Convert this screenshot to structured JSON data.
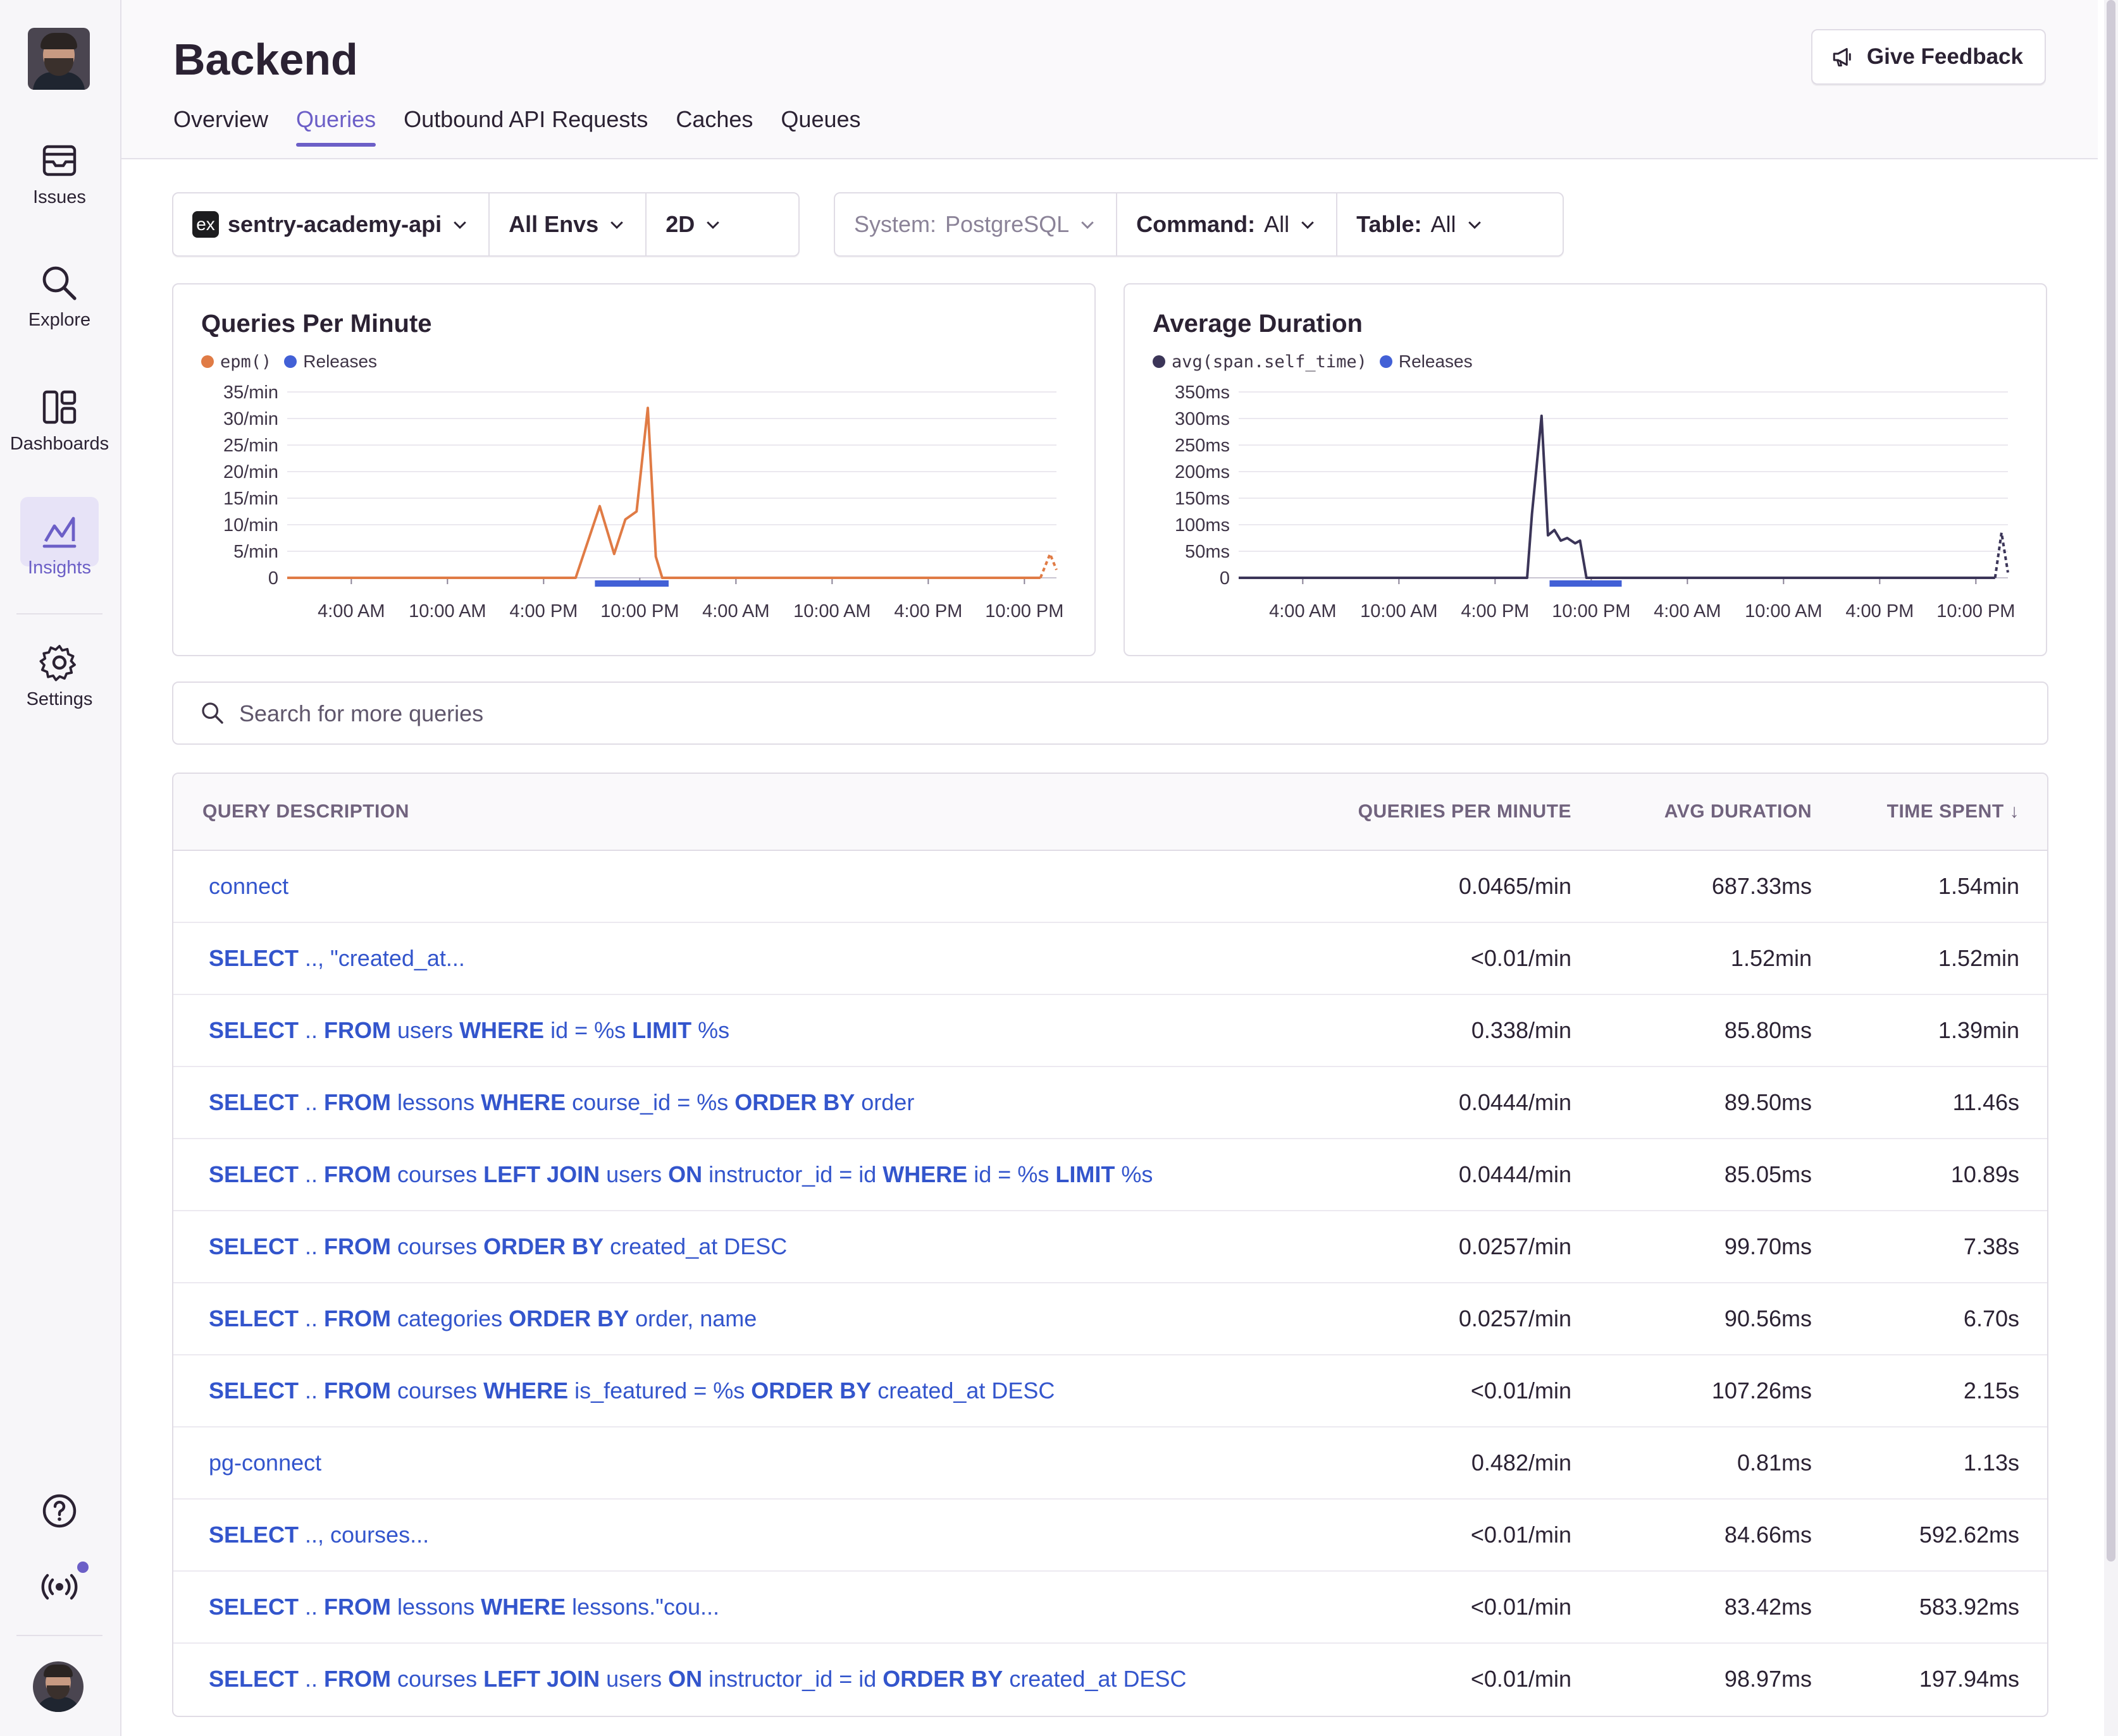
{
  "sidebar": {
    "items": [
      {
        "label": "Issues",
        "icon": "issues-icon"
      },
      {
        "label": "Explore",
        "icon": "search-icon"
      },
      {
        "label": "Dashboards",
        "icon": "dashboard-icon"
      },
      {
        "label": "Insights",
        "icon": "insights-icon",
        "active": true
      },
      {
        "label": "Settings",
        "icon": "gear-icon"
      }
    ],
    "footer_icons": [
      "help-icon",
      "broadcast-icon"
    ]
  },
  "header": {
    "title": "Backend",
    "feedback_label": "Give Feedback",
    "tabs": [
      {
        "label": "Overview"
      },
      {
        "label": "Queries",
        "active": true
      },
      {
        "label": "Outbound API Requests"
      },
      {
        "label": "Caches"
      },
      {
        "label": "Queues"
      }
    ]
  },
  "filters": {
    "project": {
      "badge": "ex",
      "label": "sentry-academy-api"
    },
    "env": "All Envs",
    "period": "2D",
    "system": {
      "key": "System:",
      "value": "PostgreSQL"
    },
    "command": {
      "key": "Command:",
      "value": "All"
    },
    "table": {
      "key": "Table:",
      "value": "All"
    }
  },
  "colors": {
    "accent": "#6c5fc7",
    "epm_series": "#e07b45",
    "duration_series": "#3b3558",
    "releases": "#4260d6",
    "link": "#3355cc"
  },
  "charts": {
    "qpm": {
      "title": "Queries Per Minute",
      "legend": [
        {
          "label": "epm()",
          "color": "#e07b45",
          "mono": true
        },
        {
          "label": "Releases",
          "color": "#4260d6"
        }
      ]
    },
    "duration": {
      "title": "Average Duration",
      "legend": [
        {
          "label": "avg(span.self_time)",
          "color": "#3b3558",
          "mono": true
        },
        {
          "label": "Releases",
          "color": "#4260d6"
        }
      ]
    }
  },
  "chart_data": [
    {
      "type": "line",
      "title": "Queries Per Minute",
      "ylabel": "",
      "ylim": [
        0,
        35
      ],
      "yticks": [
        "35/min",
        "30/min",
        "25/min",
        "20/min",
        "15/min",
        "10/min",
        "5/min",
        "0"
      ],
      "xticks": [
        "4:00 AM",
        "10:00 AM",
        "4:00 PM",
        "10:00 PM",
        "4:00 AM",
        "10:00 AM",
        "4:00 PM",
        "10:00 PM"
      ],
      "series": [
        {
          "name": "epm()",
          "x_hours": [
            0,
            18,
            19.5,
            20.4,
            21.1,
            21.8,
            22.5,
            23.0,
            23.4,
            24.0,
            47.0,
            47.6,
            48
          ],
          "values": [
            0,
            0,
            13.5,
            4.5,
            11,
            12.5,
            32,
            4,
            0,
            0,
            0,
            4.5,
            1.5
          ]
        }
      ],
      "releases_range_hours": [
        19.2,
        23.8
      ]
    },
    {
      "type": "line",
      "title": "Average Duration",
      "ylabel": "",
      "ylim": [
        0,
        350
      ],
      "yticks": [
        "350ms",
        "300ms",
        "250ms",
        "200ms",
        "150ms",
        "100ms",
        "50ms",
        "0"
      ],
      "xticks": [
        "4:00 AM",
        "10:00 AM",
        "4:00 PM",
        "10:00 PM",
        "4:00 AM",
        "10:00 AM",
        "4:00 PM",
        "10:00 PM"
      ],
      "series": [
        {
          "name": "avg(span.self_time)",
          "x_hours": [
            0,
            18,
            18.3,
            18.9,
            19.3,
            19.7,
            20.1,
            20.5,
            21.0,
            21.3,
            21.7,
            22.2,
            47.2,
            47.6,
            48
          ],
          "values": [
            0,
            0,
            120,
            305,
            80,
            90,
            70,
            75,
            65,
            70,
            0,
            0,
            0,
            85,
            10
          ]
        }
      ],
      "releases_range_hours": [
        19.4,
        23.9
      ]
    }
  ],
  "search": {
    "placeholder": "Search for more queries"
  },
  "table": {
    "headers": {
      "description": "QUERY DESCRIPTION",
      "qpm": "QUERIES PER MINUTE",
      "avg": "AVG DURATION",
      "time": "TIME SPENT",
      "sort_indicator": "↓"
    },
    "rows": [
      {
        "tokens": [
          {
            "t": "connect",
            "b": false
          }
        ],
        "qpm": "0.0465/min",
        "avg": "687.33ms",
        "time": "1.54min"
      },
      {
        "tokens": [
          {
            "t": "SELECT",
            "b": true
          },
          {
            "t": " .., \"created_at...",
            "b": false
          }
        ],
        "qpm": "<0.01/min",
        "avg": "1.52min",
        "time": "1.52min"
      },
      {
        "tokens": [
          {
            "t": "SELECT",
            "b": true
          },
          {
            "t": " .. ",
            "b": false
          },
          {
            "t": "FROM",
            "b": true
          },
          {
            "t": " users ",
            "b": false
          },
          {
            "t": "WHERE",
            "b": true
          },
          {
            "t": " id = %s ",
            "b": false
          },
          {
            "t": "LIMIT",
            "b": true
          },
          {
            "t": " %s",
            "b": false
          }
        ],
        "qpm": "0.338/min",
        "avg": "85.80ms",
        "time": "1.39min"
      },
      {
        "tokens": [
          {
            "t": "SELECT",
            "b": true
          },
          {
            "t": " .. ",
            "b": false
          },
          {
            "t": "FROM",
            "b": true
          },
          {
            "t": " lessons ",
            "b": false
          },
          {
            "t": "WHERE",
            "b": true
          },
          {
            "t": " course_id = %s ",
            "b": false
          },
          {
            "t": "ORDER BY",
            "b": true
          },
          {
            "t": " order",
            "b": false
          }
        ],
        "qpm": "0.0444/min",
        "avg": "89.50ms",
        "time": "11.46s"
      },
      {
        "tokens": [
          {
            "t": "SELECT",
            "b": true
          },
          {
            "t": " .. ",
            "b": false
          },
          {
            "t": "FROM",
            "b": true
          },
          {
            "t": " courses ",
            "b": false
          },
          {
            "t": "LEFT JOIN",
            "b": true
          },
          {
            "t": " users ",
            "b": false
          },
          {
            "t": "ON",
            "b": true
          },
          {
            "t": " instructor_id = id ",
            "b": false
          },
          {
            "t": "WHERE",
            "b": true
          },
          {
            "t": " id = %s ",
            "b": false
          },
          {
            "t": "LIMIT",
            "b": true
          },
          {
            "t": " %s",
            "b": false
          }
        ],
        "qpm": "0.0444/min",
        "avg": "85.05ms",
        "time": "10.89s"
      },
      {
        "tokens": [
          {
            "t": "SELECT",
            "b": true
          },
          {
            "t": " .. ",
            "b": false
          },
          {
            "t": "FROM",
            "b": true
          },
          {
            "t": " courses ",
            "b": false
          },
          {
            "t": "ORDER BY",
            "b": true
          },
          {
            "t": " created_at DESC",
            "b": false
          }
        ],
        "qpm": "0.0257/min",
        "avg": "99.70ms",
        "time": "7.38s"
      },
      {
        "tokens": [
          {
            "t": "SELECT",
            "b": true
          },
          {
            "t": " .. ",
            "b": false
          },
          {
            "t": "FROM",
            "b": true
          },
          {
            "t": " categories ",
            "b": false
          },
          {
            "t": "ORDER BY",
            "b": true
          },
          {
            "t": " order, name",
            "b": false
          }
        ],
        "qpm": "0.0257/min",
        "avg": "90.56ms",
        "time": "6.70s"
      },
      {
        "tokens": [
          {
            "t": "SELECT",
            "b": true
          },
          {
            "t": " .. ",
            "b": false
          },
          {
            "t": "FROM",
            "b": true
          },
          {
            "t": " courses ",
            "b": false
          },
          {
            "t": "WHERE",
            "b": true
          },
          {
            "t": " is_featured = %s ",
            "b": false
          },
          {
            "t": "ORDER BY",
            "b": true
          },
          {
            "t": " created_at DESC",
            "b": false
          }
        ],
        "qpm": "<0.01/min",
        "avg": "107.26ms",
        "time": "2.15s"
      },
      {
        "tokens": [
          {
            "t": "pg-connect",
            "b": false
          }
        ],
        "qpm": "0.482/min",
        "avg": "0.81ms",
        "time": "1.13s"
      },
      {
        "tokens": [
          {
            "t": "SELECT",
            "b": true
          },
          {
            "t": " .., courses...",
            "b": false
          }
        ],
        "qpm": "<0.01/min",
        "avg": "84.66ms",
        "time": "592.62ms"
      },
      {
        "tokens": [
          {
            "t": "SELECT",
            "b": true
          },
          {
            "t": " .. ",
            "b": false
          },
          {
            "t": "FROM",
            "b": true
          },
          {
            "t": " lessons ",
            "b": false
          },
          {
            "t": "WHERE",
            "b": true
          },
          {
            "t": " lessons.\"cou...",
            "b": false
          }
        ],
        "qpm": "<0.01/min",
        "avg": "83.42ms",
        "time": "583.92ms"
      },
      {
        "tokens": [
          {
            "t": "SELECT",
            "b": true
          },
          {
            "t": " .. ",
            "b": false
          },
          {
            "t": "FROM",
            "b": true
          },
          {
            "t": " courses ",
            "b": false
          },
          {
            "t": "LEFT JOIN",
            "b": true
          },
          {
            "t": " users ",
            "b": false
          },
          {
            "t": "ON",
            "b": true
          },
          {
            "t": " instructor_id = id ",
            "b": false
          },
          {
            "t": "ORDER BY",
            "b": true
          },
          {
            "t": " created_at DESC",
            "b": false
          }
        ],
        "qpm": "<0.01/min",
        "avg": "98.97ms",
        "time": "197.94ms"
      }
    ]
  }
}
